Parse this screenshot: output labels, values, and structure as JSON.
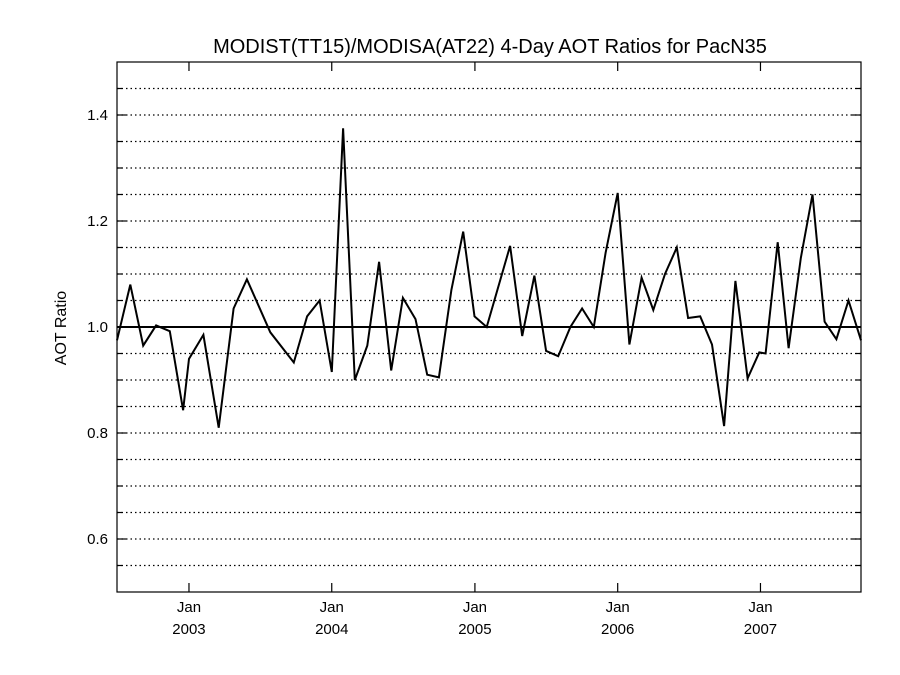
{
  "chart_data": {
    "type": "line",
    "title": "MODIST(TT15)/MODISA(AT22) 4-Day AOT Ratios for PacN35",
    "xlabel": "",
    "ylabel": "AOT Ratio",
    "xlim": [
      "2002-07-01",
      "2007-09-15"
    ],
    "ylim": [
      0.5,
      1.5
    ],
    "y_ticks": [
      0.6,
      0.8,
      1.0,
      1.2,
      1.4
    ],
    "y_tick_labels": [
      "0.6",
      "0.8",
      "1.0",
      "1.2",
      "1.4"
    ],
    "x_ticks": [
      {
        "date": "2003-01-01",
        "label1": "Jan",
        "label2": "2003"
      },
      {
        "date": "2004-01-01",
        "label1": "Jan",
        "label2": "2004"
      },
      {
        "date": "2005-01-01",
        "label1": "Jan",
        "label2": "2005"
      },
      {
        "date": "2006-01-01",
        "label1": "Jan",
        "label2": "2006"
      },
      {
        "date": "2007-01-01",
        "label1": "Jan",
        "label2": "2007"
      }
    ],
    "grid": "dotted horizontal lines every 0.05",
    "reference_line": 1.0,
    "series": [
      {
        "color": "#000000",
        "x": [
          "2002-07-01",
          "2002-08-04",
          "2002-09-06",
          "2002-10-09",
          "2002-11-13",
          "2002-12-17",
          "2003-01-01",
          "2003-02-07",
          "2003-03-18",
          "2003-04-25",
          "2003-05-29",
          "2003-07-28",
          "2003-09-26",
          "2003-10-30",
          "2003-12-01",
          "2004-01-01",
          "2004-01-30",
          "2004-02-29",
          "2004-04-01",
          "2004-05-01",
          "2004-06-01",
          "2004-07-01",
          "2004-08-02",
          "2004-09-01",
          "2004-10-01",
          "2004-11-02",
          "2004-12-02",
          "2004-12-31",
          "2005-01-31",
          "2005-04-01",
          "2005-05-02",
          "2005-06-02",
          "2005-07-02",
          "2005-08-02",
          "2005-09-02",
          "2005-10-02",
          "2005-11-01",
          "2005-12-01",
          "2006-01-01",
          "2006-01-31",
          "2006-03-03",
          "2006-04-02",
          "2006-05-02",
          "2006-06-01",
          "2006-06-30",
          "2006-07-31",
          "2006-08-30",
          "2006-09-30",
          "2006-10-29",
          "2006-11-29",
          "2006-12-29",
          "2007-01-14",
          "2007-02-14",
          "2007-03-14",
          "2007-04-14",
          "2007-05-14",
          "2007-06-14",
          "2007-07-14",
          "2007-08-14",
          "2007-09-15"
        ],
        "y": [
          0.975,
          1.08,
          0.965,
          1.003,
          0.992,
          0.843,
          0.94,
          0.985,
          0.81,
          1.035,
          1.09,
          0.99,
          0.933,
          1.02,
          1.05,
          0.915,
          1.375,
          0.9,
          0.965,
          1.123,
          0.918,
          1.055,
          1.015,
          0.91,
          0.905,
          1.07,
          1.18,
          1.02,
          1.0,
          1.153,
          0.983,
          1.097,
          0.955,
          0.945,
          1.0,
          1.035,
          1.0,
          1.14,
          1.253,
          0.967,
          1.093,
          1.032,
          1.1,
          1.15,
          1.017,
          1.02,
          0.967,
          0.813,
          1.087,
          0.903,
          0.952,
          0.95,
          1.16,
          0.96,
          1.13,
          1.25,
          1.01,
          0.977,
          1.05,
          0.975
        ]
      }
    ]
  }
}
